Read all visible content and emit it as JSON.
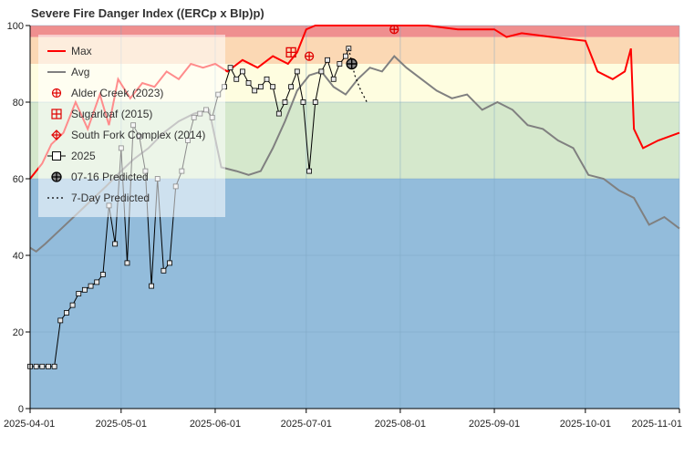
{
  "chart_data": {
    "type": "line",
    "title": "Severe Fire Danger Index ((ERCp x BIp)p)",
    "xlabel": "",
    "ylabel": "",
    "xlim": [
      "2025-04-01",
      "2025-11-01"
    ],
    "ylim": [
      0,
      100
    ],
    "y_ticks": [
      "0",
      "20",
      "40",
      "60",
      "80",
      "100"
    ],
    "x_ticks": [
      "2025-04-01",
      "2025-05-01",
      "2025-06-01",
      "2025-07-01",
      "2025-08-01",
      "2025-09-01",
      "2025-10-01",
      "2025-11-01"
    ],
    "grid": true,
    "legend_placement": "top-left",
    "bands": [
      {
        "from": 0,
        "to": 60,
        "color": "#93bcdb"
      },
      {
        "from": 60,
        "to": 80,
        "color": "#d5e8cc"
      },
      {
        "from": 80,
        "to": 90,
        "color": "#fefde0"
      },
      {
        "from": 90,
        "to": 97,
        "color": "#fbd8b4"
      },
      {
        "from": 97,
        "to": 100,
        "color": "#ef8f8f"
      }
    ],
    "colors": {
      "max": "#ff0000",
      "avg": "#808080",
      "series_2025": "#000000",
      "predicted": "#000000"
    },
    "legend": [
      {
        "label": "Max",
        "symbol": "line",
        "color": "#ff0000"
      },
      {
        "label": "Avg",
        "symbol": "line",
        "color": "#808080"
      },
      {
        "label": "Alder Creek (2023)",
        "symbol": "circle-plus",
        "color": "#e00000"
      },
      {
        "label": "Sugarloaf (2015)",
        "symbol": "square-plus",
        "color": "#e00000"
      },
      {
        "label": "South Fork Complex (2014)",
        "symbol": "diamond-plus",
        "color": "#e00000"
      },
      {
        "label": "2025",
        "symbol": "line-square",
        "color": "#000000"
      },
      {
        "label": "07-16 Predicted",
        "symbol": "circle-plus-filled",
        "color": "#000000"
      },
      {
        "label": "7-Day Predicted",
        "symbol": "dotted",
        "color": "#000000"
      }
    ],
    "series": [
      {
        "name": "Max",
        "x": [
          "2025-04-01",
          "2025-04-05",
          "2025-04-08",
          "2025-04-12",
          "2025-04-16",
          "2025-04-20",
          "2025-04-24",
          "2025-04-27",
          "2025-04-30",
          "2025-05-04",
          "2025-05-08",
          "2025-05-12",
          "2025-05-16",
          "2025-05-20",
          "2025-05-24",
          "2025-05-28",
          "2025-06-01",
          "2025-06-05",
          "2025-06-10",
          "2025-06-15",
          "2025-06-20",
          "2025-06-25",
          "2025-06-28",
          "2025-07-01",
          "2025-07-04",
          "2025-07-10",
          "2025-07-20",
          "2025-08-01",
          "2025-08-10",
          "2025-08-20",
          "2025-09-01",
          "2025-09-05",
          "2025-09-10",
          "2025-09-20",
          "2025-10-01",
          "2025-10-05",
          "2025-10-10",
          "2025-10-14",
          "2025-10-16",
          "2025-10-17",
          "2025-10-20",
          "2025-10-25",
          "2025-11-01"
        ],
        "values": [
          60,
          64,
          69,
          72,
          80,
          73,
          82,
          74,
          86,
          81,
          85,
          84,
          88,
          86,
          90,
          89,
          90,
          88,
          91,
          89,
          92,
          90,
          93,
          99,
          100,
          100,
          100,
          100,
          100,
          99,
          99,
          97,
          98,
          97,
          96,
          88,
          86,
          88,
          94,
          73,
          68,
          70,
          72
        ]
      },
      {
        "name": "Avg",
        "x": [
          "2025-04-01",
          "2025-04-03",
          "2025-04-06",
          "2025-04-10",
          "2025-04-14",
          "2025-04-18",
          "2025-04-22",
          "2025-04-26",
          "2025-05-01",
          "2025-05-05",
          "2025-05-10",
          "2025-05-15",
          "2025-05-20",
          "2025-05-25",
          "2025-05-30",
          "2025-06-03",
          "2025-06-08",
          "2025-06-12",
          "2025-06-16",
          "2025-06-20",
          "2025-06-24",
          "2025-06-28",
          "2025-07-02",
          "2025-07-06",
          "2025-07-10",
          "2025-07-14",
          "2025-07-18",
          "2025-07-22",
          "2025-07-26",
          "2025-07-30",
          "2025-08-03",
          "2025-08-08",
          "2025-08-13",
          "2025-08-18",
          "2025-08-23",
          "2025-08-28",
          "2025-09-02",
          "2025-09-07",
          "2025-09-12",
          "2025-09-17",
          "2025-09-22",
          "2025-09-27",
          "2025-10-02",
          "2025-10-07",
          "2025-10-12",
          "2025-10-17",
          "2025-10-22",
          "2025-10-27",
          "2025-11-01"
        ],
        "values": [
          42,
          41,
          43,
          46,
          49,
          52,
          55,
          58,
          62,
          65,
          68,
          72,
          75,
          77,
          78,
          63,
          62,
          61,
          62,
          68,
          75,
          83,
          87,
          88,
          84,
          82,
          86,
          89,
          88,
          92,
          89,
          86,
          83,
          81,
          82,
          78,
          80,
          78,
          74,
          73,
          70,
          68,
          61,
          60,
          57,
          55,
          48,
          50,
          47
        ]
      },
      {
        "name": "2025",
        "x": [
          "2025-04-01",
          "2025-04-03",
          "2025-04-05",
          "2025-04-07",
          "2025-04-09",
          "2025-04-11",
          "2025-04-13",
          "2025-04-15",
          "2025-04-17",
          "2025-04-19",
          "2025-04-21",
          "2025-04-23",
          "2025-04-25",
          "2025-04-27",
          "2025-04-29",
          "2025-05-01",
          "2025-05-03",
          "2025-05-05",
          "2025-05-07",
          "2025-05-09",
          "2025-05-11",
          "2025-05-13",
          "2025-05-15",
          "2025-05-17",
          "2025-05-19",
          "2025-05-21",
          "2025-05-23",
          "2025-05-25",
          "2025-05-27",
          "2025-05-29",
          "2025-05-31",
          "2025-06-02",
          "2025-06-04",
          "2025-06-06",
          "2025-06-08",
          "2025-06-10",
          "2025-06-12",
          "2025-06-14",
          "2025-06-16",
          "2025-06-18",
          "2025-06-20",
          "2025-06-22",
          "2025-06-24",
          "2025-06-26",
          "2025-06-28",
          "2025-06-30",
          "2025-07-02",
          "2025-07-04",
          "2025-07-06",
          "2025-07-08",
          "2025-07-10",
          "2025-07-12",
          "2025-07-14",
          "2025-07-15"
        ],
        "values": [
          11,
          11,
          11,
          11,
          11,
          23,
          25,
          27,
          30,
          31,
          32,
          33,
          35,
          53,
          43,
          68,
          38,
          74,
          71,
          62,
          32,
          60,
          36,
          38,
          58,
          62,
          70,
          76,
          77,
          78,
          76,
          82,
          84,
          89,
          86,
          88,
          85,
          83,
          84,
          86,
          84,
          77,
          80,
          84,
          88,
          80,
          62,
          80,
          88,
          91,
          86,
          90,
          92,
          94
        ]
      },
      {
        "name": "7-Day Predicted",
        "x": [
          "2025-07-15",
          "2025-07-17",
          "2025-07-19",
          "2025-07-21"
        ],
        "values": [
          94,
          87,
          83,
          80
        ]
      }
    ],
    "events": [
      {
        "name": "Alder Creek (2023)",
        "x": "2025-07-02",
        "value": 92
      },
      {
        "name": "Sugarloaf (2015)",
        "x": "2025-06-26",
        "value": 93
      },
      {
        "name": "Alder Creek (2023)",
        "x": "2025-07-30",
        "value": 99
      }
    ],
    "predicted_point": {
      "label": "07-16 Predicted",
      "x": "2025-07-16",
      "value": 90
    }
  }
}
